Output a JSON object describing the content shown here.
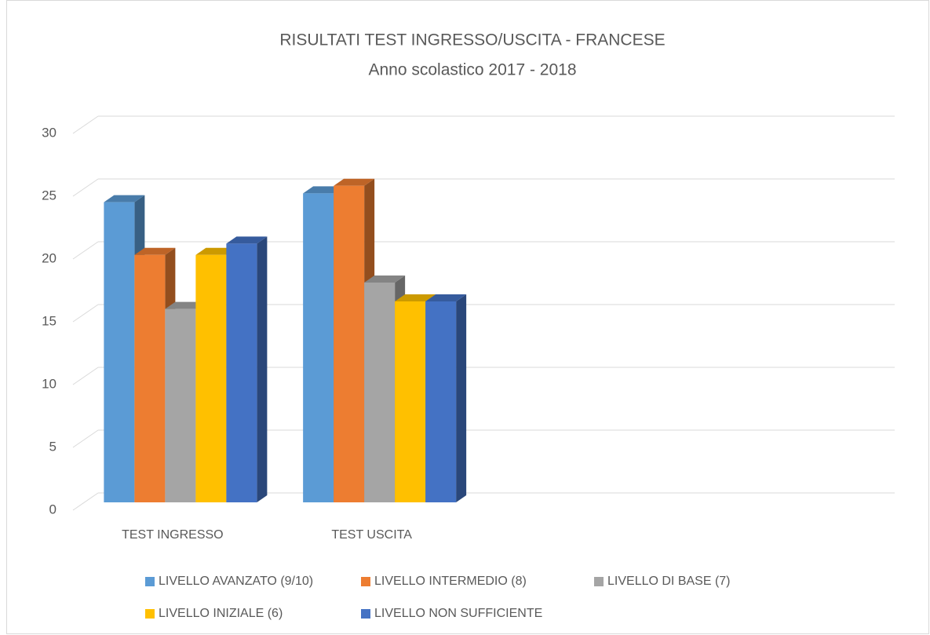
{
  "chart_data": {
    "type": "bar3d",
    "title": "RISULTATI TEST INGRESSO/USCITA - FRANCESE",
    "subtitle": "Anno scolastico 2017 - 2018",
    "categories": [
      "TEST INGRESSO",
      "TEST USCITA",
      null,
      null
    ],
    "series": [
      {
        "name": "LIVELLO AVANZATO (9/10)",
        "color": "#5b9bd5",
        "values": [
          23.9,
          24.6,
          null,
          null
        ]
      },
      {
        "name": "LIVELLO INTERMEDIO (8)",
        "color": "#ed7d31",
        "values": [
          19.7,
          25.2,
          null,
          null
        ]
      },
      {
        "name": "LIVELLO DI BASE (7)",
        "color": "#a5a5a5",
        "values": [
          15.4,
          17.5,
          null,
          null
        ]
      },
      {
        "name": "LIVELLO INIZIALE (6)",
        "color": "#ffc000",
        "values": [
          19.7,
          16,
          null,
          null
        ]
      },
      {
        "name": "LIVELLO NON SUFFICIENTE",
        "color": "#4472c4",
        "values": [
          20.6,
          16,
          null,
          null
        ]
      }
    ],
    "ylim": [
      0,
      30
    ],
    "yticks": [
      0,
      5,
      10,
      15,
      20,
      25,
      30
    ],
    "grid": true
  }
}
